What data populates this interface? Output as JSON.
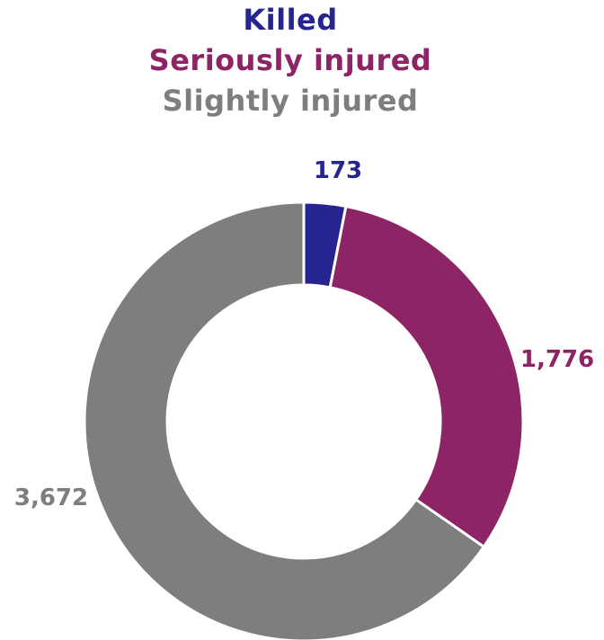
{
  "chart_data": {
    "type": "pie",
    "variant": "donut",
    "categories": [
      "Killed",
      "Seriously injured",
      "Slightly injured"
    ],
    "values": [
      173,
      1776,
      3672
    ],
    "value_labels": [
      "173",
      "1,776",
      "3,672"
    ],
    "colors": [
      "#26258f",
      "#8c2465",
      "#7e7e7e"
    ],
    "legend": {
      "placement": "top",
      "entries": [
        "Killed",
        "Seriously injured",
        "Slightly injured"
      ]
    },
    "start_angle": "12 o'clock",
    "direction": "clockwise"
  }
}
